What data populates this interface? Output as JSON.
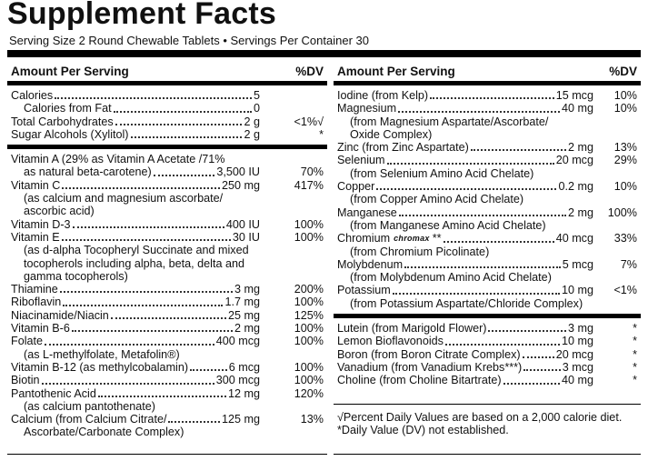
{
  "header": {
    "title": "Supplement Facts",
    "serving": "Serving Size 2 Round Chewable Tablets • Servings Per Container 30"
  },
  "left": {
    "heading": "Amount Per Serving",
    "dv_heading": "%DV",
    "groups": [
      [
        {
          "name": "Calories",
          "amount": "5",
          "sub_rows": [
            {
              "name": "Calories from Fat",
              "amount": "0"
            }
          ]
        },
        {
          "name": "Total Carbohydrates",
          "amount": "2 g",
          "dv": "<1%√"
        },
        {
          "name": "Sugar Alcohols (Xylitol)",
          "amount": "2 g",
          "dv": "*"
        }
      ],
      [
        {
          "name": "Vitamin A (29% as Vitamin A Acetate /71%",
          "name_cont": "as natural beta-carotene)",
          "amount": "3,500 IU",
          "dv": "70%"
        },
        {
          "name": "Vitamin C",
          "amount": "250 mg",
          "dv": "417%",
          "notes": [
            "(as calcium and magnesium ascorbate/",
            "ascorbic acid)"
          ]
        },
        {
          "name": "Vitamin D-3",
          "amount": "400 IU",
          "dv": "100%"
        },
        {
          "name": "Vitamin E",
          "amount": "30 IU",
          "dv": "100%",
          "notes": [
            "(as d-alpha Tocopheryl Succinate and mixed",
            "tocopherols including alpha, beta, delta and",
            "gamma tocopherols)"
          ]
        },
        {
          "name": "Thiamine",
          "amount": "3 mg",
          "dv": "200%"
        },
        {
          "name": "Riboflavin",
          "amount": "1.7 mg",
          "dv": "100%"
        },
        {
          "name": "Niacinamide/Niacin",
          "amount": "25 mg",
          "dv": "125%"
        },
        {
          "name": "Vitamin B-6",
          "amount": "2 mg",
          "dv": "100%"
        },
        {
          "name": "Folate",
          "amount": "400 mcg",
          "dv": "100%",
          "notes": [
            "(as L-methylfolate, Metafolin®)"
          ]
        },
        {
          "name": "Vitamin B-12 (as methylcobalamin)",
          "amount": "6 mcg",
          "dv": "100%"
        },
        {
          "name": "Biotin",
          "amount": "300 mcg",
          "dv": "100%"
        },
        {
          "name": "Pantothenic Acid",
          "amount": "12 mg",
          "dv": "120%",
          "notes": [
            "(as calcium pantothenate)"
          ]
        },
        {
          "name": "Calcium (from Calcium Citrate/",
          "amount": "125 mg",
          "dv": "13%",
          "notes": [
            "Ascorbate/Carbonate Complex)"
          ]
        }
      ]
    ]
  },
  "right": {
    "heading": "Amount Per Serving",
    "dv_heading": "%DV",
    "groups": [
      [
        {
          "name": "Iodine (from Kelp)",
          "amount": "15 mcg",
          "dv": "10%"
        },
        {
          "name": "Magnesium",
          "amount": "40 mg",
          "dv": "10%",
          "notes": [
            "(from Magnesium Aspartate/Ascorbate/",
            "Oxide Complex)"
          ]
        },
        {
          "name": "Zinc (from Zinc Aspartate)",
          "amount": "2 mg",
          "dv": "13%"
        },
        {
          "name": "Selenium",
          "amount": "20 mcg",
          "dv": "29%",
          "notes": [
            "(from Selenium Amino Acid Chelate)"
          ]
        },
        {
          "name": "Copper",
          "amount": "0.2 mg",
          "dv": "10%",
          "notes": [
            "(from Copper Amino Acid Chelate)"
          ]
        },
        {
          "name": "Manganese",
          "amount": "2 mg",
          "dv": "100%",
          "notes": [
            "(from Manganese Amino Acid Chelate)"
          ]
        },
        {
          "name": "Chromium",
          "brand": "chromax",
          "name_suffix": "**",
          "amount": "40 mcg",
          "dv": "33%",
          "notes": [
            "(from Chromium Picolinate)"
          ]
        },
        {
          "name": "Molybdenum",
          "amount": "5 mcg",
          "dv": "7%",
          "notes": [
            "(from Molybdenum Amino Acid Chelate)"
          ]
        },
        {
          "name": "Potassium",
          "amount": "10 mg",
          "dv": "<1%",
          "notes": [
            "(from Potassium Aspartate/Chloride Complex)"
          ]
        }
      ],
      [
        {
          "name": "Lutein (from Marigold Flower)",
          "amount": "3 mg",
          "dv": "*"
        },
        {
          "name": "Lemon Bioflavonoids",
          "amount": "10 mg",
          "dv": "*"
        },
        {
          "name": "Boron (from Boron Citrate Complex)",
          "amount": "20 mcg",
          "dv": "*"
        },
        {
          "name": "Vanadium (from Vanadium Krebs***)",
          "amount": "3 mcg",
          "dv": "*"
        },
        {
          "name": "Choline (from Choline Bitartrate)",
          "amount": "40 mg",
          "dv": "*"
        }
      ]
    ],
    "footnotes": [
      "√Percent Daily Values are based on a 2,000 calorie diet.",
      "*Daily Value (DV) not established."
    ]
  }
}
